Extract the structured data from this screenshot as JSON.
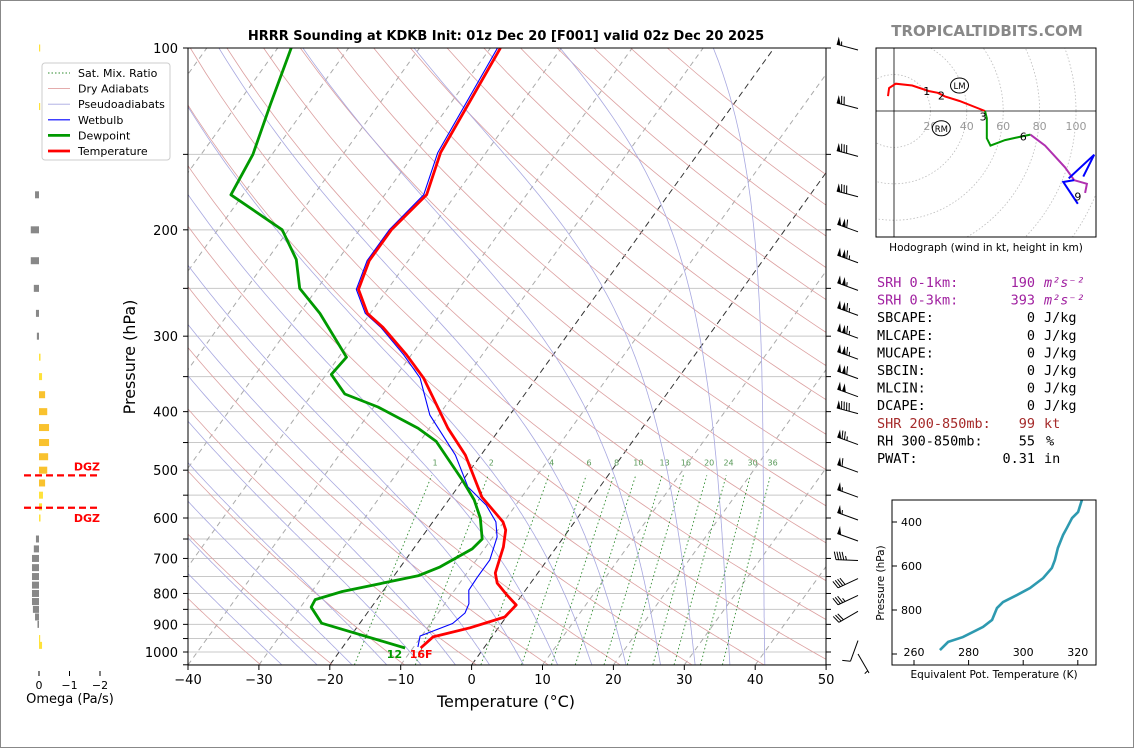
{
  "title": "HRRR Sounding at KDKB Init: 01z Dec 20 [F001] valid 02z Dec 20 2025",
  "site_label": "TROPICALTIDBITS.COM",
  "legend": [
    {
      "label": "Sat. Mix. Ratio",
      "color": "#2e8b2e",
      "style": "dotted"
    },
    {
      "label": "Dry Adiabats",
      "color": "#e0a0a0",
      "style": "solid"
    },
    {
      "label": "Pseudoadiabats",
      "color": "#a8a8e0",
      "style": "solid"
    },
    {
      "label": "Wetbulb",
      "color": "#0000ff",
      "style": "solid"
    },
    {
      "label": "Dewpoint",
      "color": "#009900",
      "style": "thick"
    },
    {
      "label": "Temperature",
      "color": "#ff0000",
      "style": "thick"
    }
  ],
  "surface_labels": {
    "dewpoint": "12",
    "temperature": "16F"
  },
  "params": [
    {
      "label": "SRH 0-1km:",
      "value": "190",
      "unit": "m²s⁻²",
      "color": "#a020a0"
    },
    {
      "label": "SRH 0-3km:",
      "value": "393",
      "unit": "m²s⁻²",
      "color": "#a020a0"
    },
    {
      "label": "SBCAPE:",
      "value": "0",
      "unit": "J/kg",
      "color": "#000000"
    },
    {
      "label": "MLCAPE:",
      "value": "0",
      "unit": "J/kg",
      "color": "#000000"
    },
    {
      "label": "MUCAPE:",
      "value": "0",
      "unit": "J/kg",
      "color": "#000000"
    },
    {
      "label": "SBCIN:",
      "value": "0",
      "unit": "J/kg",
      "color": "#000000"
    },
    {
      "label": "MLCIN:",
      "value": "0",
      "unit": "J/kg",
      "color": "#000000"
    },
    {
      "label": "DCAPE:",
      "value": "0",
      "unit": "J/kg",
      "color": "#000000"
    },
    {
      "label": "SHR 200-850mb:",
      "value": "99",
      "unit": "kt",
      "color": "#a52a2a"
    },
    {
      "label": "RH 300-850mb:",
      "value": "55",
      "unit": "%",
      "color": "#000000"
    },
    {
      "label": "PWAT:",
      "value": "0.31",
      "unit": "in",
      "color": "#000000"
    }
  ],
  "chart_data": [
    {
      "type": "line",
      "name": "skew-t",
      "xlabel": "Temperature (°C)",
      "ylabel": "Pressure (hPa)",
      "xlim": [
        -40,
        50
      ],
      "ylim": [
        1050,
        100
      ],
      "yscale": "log",
      "xticks": [
        "−40",
        "−30",
        "−20",
        "−10",
        "0",
        "10",
        "20",
        "30",
        "40",
        "50"
      ],
      "yticks": [
        "100",
        "200",
        "300",
        "400",
        "500",
        "600",
        "700",
        "800",
        "900",
        "1000"
      ],
      "mixing_ratio_labels": [
        "1",
        "2",
        "4",
        "6",
        "8",
        "10",
        "13",
        "16",
        "20",
        "24",
        "30",
        "36"
      ],
      "temperature": [
        [
          985,
          -8.9
        ],
        [
          944,
          -8.3
        ],
        [
          912,
          -4.0
        ],
        [
          875,
          -0.2
        ],
        [
          836,
          0.2
        ],
        [
          805,
          -2.1
        ],
        [
          769,
          -4.7
        ],
        [
          740,
          -6.0
        ],
        [
          670,
          -7.5
        ],
        [
          628,
          -8.9
        ],
        [
          609,
          -10.1
        ],
        [
          554,
          -15.6
        ],
        [
          472,
          -22.2
        ],
        [
          426,
          -27.4
        ],
        [
          352,
          -35.9
        ],
        [
          322,
          -40.7
        ],
        [
          290,
          -46.8
        ],
        [
          275,
          -50.4
        ],
        [
          251,
          -54.1
        ],
        [
          225,
          -55.5
        ],
        [
          200,
          -55.5
        ],
        [
          175,
          -54.1
        ],
        [
          149,
          -56.4
        ],
        [
          100,
          -58.6
        ]
      ],
      "dewpoint": [
        [
          985,
          -11.1
        ],
        [
          896,
          -25.4
        ],
        [
          843,
          -28.5
        ],
        [
          819,
          -28.7
        ],
        [
          794,
          -25.7
        ],
        [
          748,
          -16.6
        ],
        [
          723,
          -14.4
        ],
        [
          675,
          -11.7
        ],
        [
          650,
          -11.3
        ],
        [
          600,
          -13.7
        ],
        [
          560,
          -16.4
        ],
        [
          519,
          -20.1
        ],
        [
          448,
          -27.7
        ],
        [
          426,
          -31.6
        ],
        [
          393,
          -39.4
        ],
        [
          374,
          -45.4
        ],
        [
          347,
          -49.3
        ],
        [
          325,
          -48.9
        ],
        [
          275,
          -57.1
        ],
        [
          250,
          -62.5
        ],
        [
          224,
          -65.9
        ],
        [
          200,
          -70.9
        ],
        [
          175,
          -81.7
        ],
        [
          150,
          -82.7
        ],
        [
          124,
          -85.3
        ],
        [
          100,
          -88.1
        ]
      ],
      "wetbulb": [
        [
          981,
          -9.4
        ],
        [
          941,
          -10.2
        ],
        [
          897,
          -6.9
        ],
        [
          862,
          -6.2
        ],
        [
          832,
          -6.6
        ],
        [
          790,
          -8.0
        ],
        [
          753,
          -8.1
        ],
        [
          704,
          -8.1
        ],
        [
          645,
          -9.4
        ],
        [
          609,
          -11.1
        ],
        [
          571,
          -14.2
        ],
        [
          533,
          -18.6
        ],
        [
          472,
          -23.6
        ],
        [
          405,
          -31.3
        ],
        [
          352,
          -36.4
        ],
        [
          322,
          -41.1
        ],
        [
          290,
          -47.1
        ],
        [
          275,
          -50.7
        ],
        [
          251,
          -54.4
        ],
        [
          225,
          -55.8
        ],
        [
          200,
          -55.8
        ],
        [
          175,
          -54.5
        ],
        [
          149,
          -56.8
        ],
        [
          100,
          -59.0
        ]
      ],
      "wind_barbs": [
        {
          "p": 100,
          "dir": 285,
          "kt": 55
        },
        {
          "p": 125,
          "dir": 285,
          "kt": 70
        },
        {
          "p": 150,
          "dir": 285,
          "kt": 80
        },
        {
          "p": 175,
          "dir": 285,
          "kt": 80
        },
        {
          "p": 200,
          "dir": 290,
          "kt": 110
        },
        {
          "p": 225,
          "dir": 290,
          "kt": 115
        },
        {
          "p": 250,
          "dir": 290,
          "kt": 105
        },
        {
          "p": 275,
          "dir": 290,
          "kt": 115
        },
        {
          "p": 300,
          "dir": 290,
          "kt": 115
        },
        {
          "p": 325,
          "dir": 290,
          "kt": 115
        },
        {
          "p": 350,
          "dir": 290,
          "kt": 110
        },
        {
          "p": 375,
          "dir": 290,
          "kt": 100
        },
        {
          "p": 400,
          "dir": 285,
          "kt": 90
        },
        {
          "p": 450,
          "dir": 290,
          "kt": 75
        },
        {
          "p": 500,
          "dir": 290,
          "kt": 60
        },
        {
          "p": 550,
          "dir": 290,
          "kt": 55
        },
        {
          "p": 600,
          "dir": 290,
          "kt": 55
        },
        {
          "p": 650,
          "dir": 290,
          "kt": 50
        },
        {
          "p": 700,
          "dir": 272,
          "kt": 45
        },
        {
          "p": 750,
          "dir": 245,
          "kt": 40
        },
        {
          "p": 800,
          "dir": 245,
          "kt": 35
        },
        {
          "p": 850,
          "dir": 240,
          "kt": 30
        },
        {
          "p": 950,
          "dir": 200,
          "kt": 10
        },
        {
          "p": 1000,
          "dir": 150,
          "kt": 5
        }
      ]
    },
    {
      "type": "line",
      "name": "hodograph",
      "xlabel": "Hodograph (wind in kt, height in km)",
      "ring_labels": [
        "20",
        "40",
        "60",
        "80",
        "100"
      ],
      "segments": [
        {
          "color": "#ff0000",
          "uv": [
            [
              -3.3,
              8.2
            ],
            [
              -2.7,
              12.6
            ],
            [
              1,
              15
            ],
            [
              10,
              14
            ],
            [
              19,
              11
            ],
            [
              24,
              10
            ],
            [
              28,
              8
            ],
            [
              36,
              5.5
            ],
            [
              50,
              0
            ]
          ]
        },
        {
          "color": "#009900",
          "uv": [
            [
              50,
              0
            ],
            [
              51,
              -4
            ],
            [
              51,
              -15
            ],
            [
              53,
              -19
            ],
            [
              61,
              -16
            ],
            [
              70,
              -14
            ],
            [
              75,
              -13
            ]
          ]
        },
        {
          "color": "#b030b0",
          "uv": [
            [
              75,
              -13
            ],
            [
              83,
              -19
            ],
            [
              94,
              -31
            ],
            [
              99,
              -38
            ],
            [
              106,
              -40
            ],
            [
              105,
              -45
            ]
          ]
        },
        {
          "color": "#0000ff",
          "uv": [
            [
              96,
              -37
            ],
            [
              110,
              -24
            ],
            [
              104,
              -36
            ]
          ]
        },
        {
          "color": "#0000ff",
          "uv": [
            [
              99,
              -38
            ],
            [
              93,
              -39
            ],
            [
              101,
              -51
            ]
          ]
        }
      ],
      "height_labels": [
        {
          "km": "1",
          "uv": [
            18,
            11
          ]
        },
        {
          "km": "2",
          "uv": [
            26,
            8.5
          ]
        },
        {
          "km": "3",
          "uv": [
            49,
            -3
          ]
        },
        {
          "km": "6",
          "uv": [
            71,
            -14
          ]
        },
        {
          "km": "9",
          "uv": [
            101,
            -47
          ]
        }
      ],
      "storm_motion": [
        {
          "label": "LM",
          "uv": [
            36,
            14
          ]
        },
        {
          "label": "RM",
          "uv": [
            26,
            -9.5
          ]
        }
      ]
    },
    {
      "type": "line",
      "name": "theta-e",
      "xlabel": "Equivalent Pot. Temperature (K)",
      "ylabel": "Pressure (hPa)",
      "xticks": [
        "260",
        "280",
        "300",
        "320"
      ],
      "yticks": [
        "400",
        "600",
        "800"
      ],
      "color": "#2e9ab0",
      "points": [
        [
          269.5,
          982
        ],
        [
          272.5,
          945
        ],
        [
          277.9,
          923
        ],
        [
          285.3,
          877
        ],
        [
          288.6,
          845
        ],
        [
          290.4,
          791
        ],
        [
          292.6,
          764
        ],
        [
          297.7,
          732
        ],
        [
          302.5,
          700
        ],
        [
          307.3,
          655
        ],
        [
          310.5,
          609
        ],
        [
          311.6,
          573
        ],
        [
          312.7,
          518
        ],
        [
          314.6,
          459
        ],
        [
          316.0,
          427
        ],
        [
          317.9,
          382
        ],
        [
          320.1,
          355
        ],
        [
          321.5,
          300
        ]
      ]
    },
    {
      "type": "bar",
      "name": "omega",
      "xlabel": "Omega (Pa/s)",
      "xticks": [
        "0",
        "−1",
        "−2"
      ],
      "dgz_label": "DGZ",
      "dgz_bounds_hPa": [
        510,
        577
      ],
      "levels": [
        [
          100,
          -0.02
        ],
        [
          125,
          -0.02
        ],
        [
          175,
          0.13
        ],
        [
          200,
          0.27
        ],
        [
          225,
          0.27
        ],
        [
          250,
          0.17
        ],
        [
          275,
          0.1
        ],
        [
          300,
          0.07
        ],
        [
          325,
          -0.05
        ],
        [
          350,
          -0.1
        ],
        [
          375,
          -0.2
        ],
        [
          400,
          -0.27
        ],
        [
          425,
          -0.33
        ],
        [
          450,
          -0.33
        ],
        [
          475,
          -0.3
        ],
        [
          500,
          -0.27
        ],
        [
          525,
          -0.2
        ],
        [
          550,
          -0.13
        ],
        [
          575,
          -0.1
        ],
        [
          600,
          -0.05
        ],
        [
          650,
          0.1
        ],
        [
          675,
          0.17
        ],
        [
          700,
          0.23
        ],
        [
          725,
          0.23
        ],
        [
          750,
          0.23
        ],
        [
          775,
          0.23
        ],
        [
          800,
          0.23
        ],
        [
          825,
          0.23
        ],
        [
          850,
          0.2
        ],
        [
          875,
          0.13
        ],
        [
          900,
          0.05
        ],
        [
          950,
          -0.03
        ],
        [
          975,
          -0.1
        ]
      ]
    }
  ]
}
